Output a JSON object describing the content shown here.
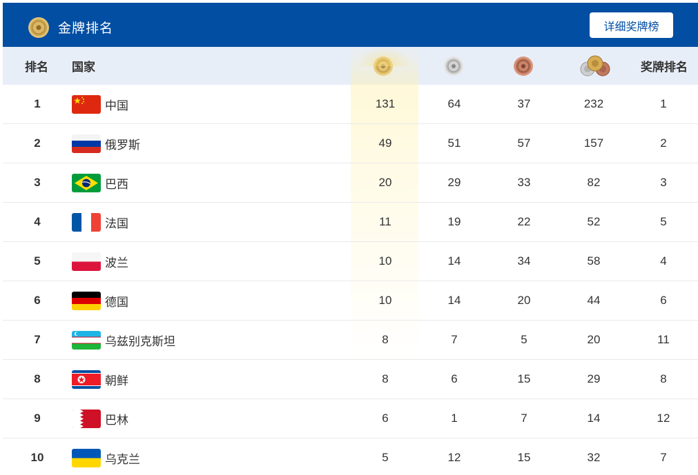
{
  "header": {
    "title": "金牌排名",
    "detail_button": "详细奖牌榜",
    "logo_icon": "gold-medal-icon"
  },
  "columns": {
    "rank": "排名",
    "country": "国家",
    "gold_icon": "gold-medal-icon",
    "silver_icon": "silver-medal-icon",
    "bronze_icon": "bronze-medal-icon",
    "total_icon": "all-medals-icon",
    "medal_rank": "奖牌排名"
  },
  "colors": {
    "header_bg": "#014ea2",
    "thead_bg": "#e8eef7",
    "gold": "#c9a34a",
    "silver": "#b9b9b9",
    "bronze": "#b9715a"
  },
  "rows": [
    {
      "rank": "1",
      "country": "中国",
      "flag": "china-flag",
      "gold": "131",
      "silver": "64",
      "bronze": "37",
      "total": "232",
      "medal_rank": "1"
    },
    {
      "rank": "2",
      "country": "俄罗斯",
      "flag": "russia-flag",
      "gold": "49",
      "silver": "51",
      "bronze": "57",
      "total": "157",
      "medal_rank": "2"
    },
    {
      "rank": "3",
      "country": "巴西",
      "flag": "brazil-flag",
      "gold": "20",
      "silver": "29",
      "bronze": "33",
      "total": "82",
      "medal_rank": "3"
    },
    {
      "rank": "4",
      "country": "法国",
      "flag": "france-flag",
      "gold": "11",
      "silver": "19",
      "bronze": "22",
      "total": "52",
      "medal_rank": "5"
    },
    {
      "rank": "5",
      "country": "波兰",
      "flag": "poland-flag",
      "gold": "10",
      "silver": "14",
      "bronze": "34",
      "total": "58",
      "medal_rank": "4"
    },
    {
      "rank": "6",
      "country": "德国",
      "flag": "germany-flag",
      "gold": "10",
      "silver": "14",
      "bronze": "20",
      "total": "44",
      "medal_rank": "6"
    },
    {
      "rank": "7",
      "country": "乌兹别克斯坦",
      "flag": "uzbekistan-flag",
      "gold": "8",
      "silver": "7",
      "bronze": "5",
      "total": "20",
      "medal_rank": "11"
    },
    {
      "rank": "8",
      "country": "朝鲜",
      "flag": "north-korea-flag",
      "gold": "8",
      "silver": "6",
      "bronze": "15",
      "total": "29",
      "medal_rank": "8"
    },
    {
      "rank": "9",
      "country": "巴林",
      "flag": "bahrain-flag",
      "gold": "6",
      "silver": "1",
      "bronze": "7",
      "total": "14",
      "medal_rank": "12"
    },
    {
      "rank": "10",
      "country": "乌克兰",
      "flag": "ukraine-flag",
      "gold": "5",
      "silver": "12",
      "bronze": "15",
      "total": "32",
      "medal_rank": "7"
    }
  ]
}
